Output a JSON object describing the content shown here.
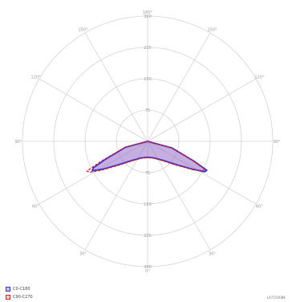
{
  "chart_data": {
    "type": "polar-line",
    "angle_ticks": [
      "180°",
      "150°",
      "120°",
      "90°",
      "60°",
      "30°",
      "0°",
      "30°",
      "60°",
      "90°",
      "120°",
      "150°"
    ],
    "radial_ticks": [
      75,
      150,
      225,
      300
    ],
    "rmax": 300,
    "grid": true,
    "legend_position": "bottom-left",
    "series": [
      {
        "name": "C0-C180",
        "color": "#3333dd",
        "fill": "rgba(150,110,200,0.55)",
        "dash": false,
        "points": [
          {
            "gamma": -75,
            "r": 60
          },
          {
            "gamma": -67,
            "r": 120
          },
          {
            "gamma": -64,
            "r": 158
          },
          {
            "gamma": -62,
            "r": 155
          },
          {
            "gamma": -58,
            "r": 125
          },
          {
            "gamma": -50,
            "r": 85
          },
          {
            "gamma": -40,
            "r": 60
          },
          {
            "gamma": -20,
            "r": 42
          },
          {
            "gamma": 0,
            "r": 38
          },
          {
            "gamma": 20,
            "r": 42
          },
          {
            "gamma": 40,
            "r": 60
          },
          {
            "gamma": 50,
            "r": 85
          },
          {
            "gamma": 58,
            "r": 125
          },
          {
            "gamma": 62,
            "r": 150
          },
          {
            "gamma": 64,
            "r": 145
          },
          {
            "gamma": 67,
            "r": 110
          },
          {
            "gamma": 75,
            "r": 55
          }
        ]
      },
      {
        "name": "C90-C270",
        "color": "#dd2222",
        "fill": "none",
        "dash": true,
        "points": [
          {
            "gamma": -75,
            "r": 58
          },
          {
            "gamma": -67,
            "r": 118
          },
          {
            "gamma": -64,
            "r": 152
          },
          {
            "gamma": -62,
            "r": 150
          },
          {
            "gamma": -58,
            "r": 128
          },
          {
            "gamma": -50,
            "r": 88
          },
          {
            "gamma": -40,
            "r": 62
          },
          {
            "gamma": -20,
            "r": 43
          },
          {
            "gamma": 0,
            "r": 39
          },
          {
            "gamma": 20,
            "r": 43
          },
          {
            "gamma": 40,
            "r": 62
          },
          {
            "gamma": 50,
            "r": 88
          },
          {
            "gamma": 58,
            "r": 130
          },
          {
            "gamma": 62,
            "r": 158
          },
          {
            "gamma": 64,
            "r": 162
          },
          {
            "gamma": 67,
            "r": 120
          },
          {
            "gamma": 75,
            "r": 57
          }
        ]
      }
    ]
  },
  "legend": {
    "items": [
      {
        "label": "C0-C180",
        "border": "#3333dd",
        "fill": "#c9c0ee"
      },
      {
        "label": "C90-C270",
        "border": "#dd2222",
        "fill": "#f3caca"
      }
    ]
  },
  "credit": "LA71500BK"
}
